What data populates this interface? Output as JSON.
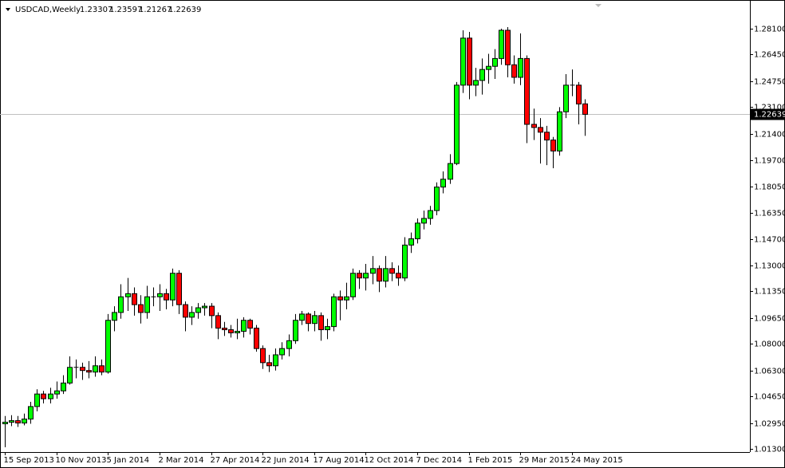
{
  "chart_data": {
    "type": "candlestick",
    "title": "USDCAD,Weekly",
    "header_ohlc": [
      1.23307,
      1.23597,
      1.21267,
      1.22639
    ],
    "last_price": 1.22639,
    "up_color": "#00ff00",
    "down_color": "#ff0000",
    "categories": [
      "15 Sep 2013",
      null,
      null,
      null,
      null,
      null,
      null,
      null,
      "10 Nov 2013",
      null,
      null,
      null,
      null,
      null,
      null,
      null,
      "5 Jan 2014",
      null,
      null,
      null,
      null,
      null,
      null,
      null,
      "2 Mar 2014",
      null,
      null,
      null,
      null,
      null,
      null,
      null,
      "27 Apr 2014",
      null,
      null,
      null,
      null,
      null,
      null,
      null,
      "22 Jun 2014",
      null,
      null,
      null,
      null,
      null,
      null,
      null,
      "17 Aug 2014",
      null,
      null,
      null,
      null,
      null,
      null,
      null,
      "12 Oct 2014",
      null,
      null,
      null,
      null,
      null,
      null,
      null,
      "7 Dec 2014",
      null,
      null,
      null,
      null,
      null,
      null,
      null,
      "1 Feb 2015",
      null,
      null,
      null,
      null,
      null,
      null,
      null,
      "29 Mar 2015",
      null,
      null,
      null,
      null,
      null,
      null,
      null,
      "24 May 2015",
      null,
      null
    ],
    "open": [
      1.029,
      1.03,
      1.031,
      1.0295,
      1.032,
      1.04,
      1.048,
      1.045,
      1.048,
      1.05,
      1.055,
      1.065,
      1.065,
      1.063,
      1.062,
      1.066,
      1.062,
      1.095,
      1.1,
      1.11,
      1.112,
      1.105,
      1.1,
      1.11,
      1.11,
      1.112,
      1.108,
      1.125,
      1.105,
      1.097,
      1.1,
      1.103,
      1.104,
      1.098,
      1.09,
      1.089,
      1.087,
      1.088,
      1.095,
      1.09,
      1.077,
      1.068,
      1.066,
      1.073,
      1.077,
      1.082,
      1.095,
      1.099,
      1.093,
      1.098,
      1.089,
      1.091,
      1.11,
      1.108,
      1.11,
      1.125,
      1.122,
      1.125,
      1.128,
      1.12,
      1.128,
      1.125,
      1.122,
      1.143,
      1.147,
      1.157,
      1.16,
      1.165,
      1.18,
      1.185,
      1.195,
      1.245,
      1.275,
      1.245,
      1.248,
      1.255,
      1.257,
      1.262,
      1.28,
      1.258,
      1.25,
      1.262,
      1.22,
      1.218,
      1.215,
      1.21,
      1.203,
      1.228,
      1.245,
      1.245,
      1.23307
    ],
    "high": [
      1.034,
      1.0345,
      1.034,
      1.0355,
      1.043,
      1.051,
      1.05,
      1.052,
      1.056,
      1.06,
      1.072,
      1.07,
      1.068,
      1.069,
      1.072,
      1.07,
      1.099,
      1.104,
      1.118,
      1.122,
      1.116,
      1.111,
      1.117,
      1.116,
      1.118,
      1.115,
      1.128,
      1.127,
      1.107,
      1.104,
      1.106,
      1.106,
      1.106,
      1.1,
      1.094,
      1.092,
      1.096,
      1.097,
      1.096,
      1.092,
      1.079,
      1.073,
      1.077,
      1.081,
      1.086,
      1.099,
      1.101,
      1.1,
      1.101,
      1.1,
      1.096,
      1.112,
      1.114,
      1.119,
      1.128,
      1.127,
      1.131,
      1.136,
      1.13,
      1.136,
      1.132,
      1.13,
      1.148,
      1.151,
      1.16,
      1.165,
      1.168,
      1.183,
      1.19,
      1.201,
      1.247,
      1.28,
      1.279,
      1.256,
      1.262,
      1.265,
      1.268,
      1.281,
      1.282,
      1.264,
      1.278,
      1.264,
      1.23,
      1.224,
      1.219,
      1.212,
      1.231,
      1.252,
      1.255,
      1.247,
      1.23597
    ],
    "low": [
      1.014,
      1.0275,
      1.027,
      1.028,
      1.029,
      1.037,
      1.042,
      1.042,
      1.045,
      1.048,
      1.054,
      1.058,
      1.057,
      1.058,
      1.059,
      1.06,
      1.061,
      1.088,
      1.096,
      1.101,
      1.098,
      1.093,
      1.096,
      1.104,
      1.101,
      1.102,
      1.104,
      1.099,
      1.088,
      1.092,
      1.096,
      1.098,
      1.09,
      1.083,
      1.085,
      1.084,
      1.083,
      1.084,
      1.086,
      1.075,
      1.064,
      1.062,
      1.063,
      1.07,
      1.072,
      1.08,
      1.092,
      1.088,
      1.088,
      1.082,
      1.083,
      1.088,
      1.095,
      1.102,
      1.108,
      1.115,
      1.114,
      1.118,
      1.113,
      1.116,
      1.12,
      1.117,
      1.12,
      1.138,
      1.144,
      1.153,
      1.156,
      1.162,
      1.176,
      1.182,
      1.194,
      1.24,
      1.236,
      1.238,
      1.239,
      1.246,
      1.249,
      1.258,
      1.25,
      1.246,
      1.245,
      1.208,
      1.21,
      1.195,
      1.194,
      1.192,
      1.2,
      1.224,
      1.238,
      1.22,
      1.21267
    ],
    "close": [
      1.03,
      1.031,
      1.0295,
      1.032,
      1.04,
      1.048,
      1.045,
      1.048,
      1.05,
      1.055,
      1.065,
      1.065,
      1.063,
      1.062,
      1.066,
      1.062,
      1.095,
      1.1,
      1.11,
      1.112,
      1.105,
      1.1,
      1.11,
      1.11,
      1.112,
      1.108,
      1.125,
      1.105,
      1.097,
      1.1,
      1.103,
      1.104,
      1.098,
      1.09,
      1.089,
      1.087,
      1.088,
      1.095,
      1.09,
      1.077,
      1.068,
      1.066,
      1.073,
      1.077,
      1.082,
      1.095,
      1.099,
      1.093,
      1.098,
      1.089,
      1.091,
      1.11,
      1.108,
      1.11,
      1.125,
      1.122,
      1.125,
      1.128,
      1.12,
      1.128,
      1.125,
      1.122,
      1.143,
      1.147,
      1.157,
      1.16,
      1.165,
      1.18,
      1.185,
      1.195,
      1.245,
      1.275,
      1.245,
      1.248,
      1.255,
      1.257,
      1.262,
      1.28,
      1.258,
      1.25,
      1.262,
      1.22,
      1.218,
      1.215,
      1.21,
      1.203,
      1.228,
      1.245,
      1.245,
      1.233,
      1.22639
    ],
    "ylim": [
      1.01097,
      1.29728
    ],
    "yticks": [
      {
        "value": 1.281,
        "label": "1.28100"
      },
      {
        "value": 1.2645,
        "label": "1.26450"
      },
      {
        "value": 1.2475,
        "label": "1.24750"
      },
      {
        "value": 1.231,
        "label": "1.23100"
      },
      {
        "value": 1.214,
        "label": "1.21400"
      },
      {
        "value": 1.197,
        "label": "1.19700"
      },
      {
        "value": 1.1805,
        "label": "1.18050"
      },
      {
        "value": 1.1635,
        "label": "1.16350"
      },
      {
        "value": 1.147,
        "label": "1.14700"
      },
      {
        "value": 1.13,
        "label": "1.13000"
      },
      {
        "value": 1.1135,
        "label": "1.11350"
      },
      {
        "value": 1.0965,
        "label": "1.09650"
      },
      {
        "value": 1.08,
        "label": "1.08000"
      },
      {
        "value": 1.063,
        "label": "1.06300"
      },
      {
        "value": 1.0465,
        "label": "1.04650"
      },
      {
        "value": 1.0295,
        "label": "1.02950"
      },
      {
        "value": 1.013,
        "label": "1.01300"
      }
    ]
  }
}
